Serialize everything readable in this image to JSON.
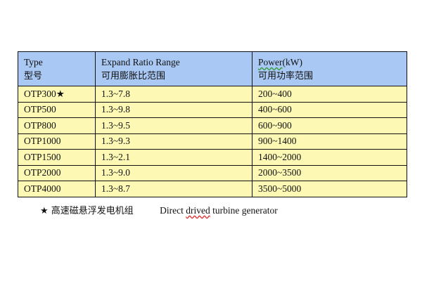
{
  "table": {
    "headers": [
      {
        "en_pre": "",
        "en_flag": "",
        "en": "Type",
        "zh": "型号"
      },
      {
        "en_pre": "",
        "en_flag": "",
        "en": "Expand Ratio Range",
        "zh": "可用膨胀比范围"
      },
      {
        "en_pre": "",
        "en_flag": "Power",
        "en": "(kW)",
        "zh": "可用功率范围"
      }
    ],
    "rows": [
      [
        "OTP300★",
        "1.3~7.8",
        "200~400"
      ],
      [
        "OTP500",
        "1.3~9.8",
        "400~600"
      ],
      [
        "OTP800",
        "1.3~9.5",
        "600~900"
      ],
      [
        "OTP1000",
        "1.3~9.3",
        "900~1400"
      ],
      [
        "OTP1500",
        "1.3~2.1",
        "1400~2000"
      ],
      [
        "OTP2000",
        "1.3~9.0",
        "2000~3500"
      ],
      [
        "OTP4000",
        "1.3~8.7",
        "3500~5000"
      ]
    ],
    "colors": {
      "header_bg": "#a9c8f3",
      "body_bg": "#fdf9b5"
    }
  },
  "footnote": {
    "star_zh": "★ 高速磁悬浮发电机组",
    "en_pre": "Direct ",
    "en_flag": "drived",
    "en_post": " turbine generator"
  }
}
